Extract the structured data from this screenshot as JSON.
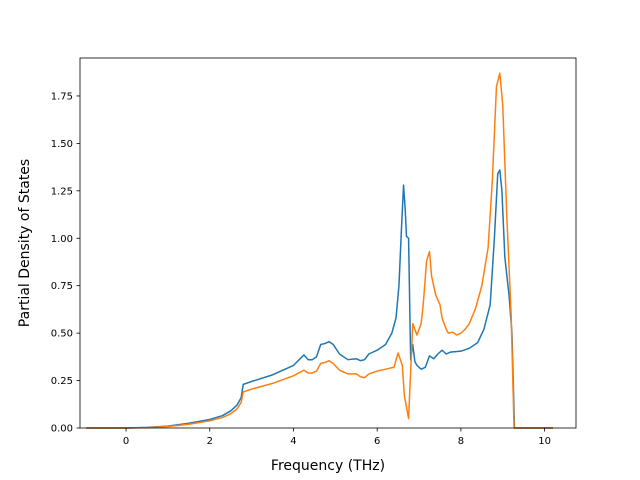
{
  "chart_data": {
    "type": "line",
    "title": "",
    "xlabel": "Frequency (THz)",
    "ylabel": "Partial Density of States",
    "xlim": [
      -1.1,
      10.75
    ],
    "ylim": [
      0,
      1.95
    ],
    "xticks": [
      0,
      2,
      4,
      6,
      8,
      10
    ],
    "yticks": [
      0.0,
      0.25,
      0.5,
      0.75,
      1.0,
      1.25,
      1.5,
      1.75
    ],
    "xtick_labels": [
      "0",
      "2",
      "4",
      "6",
      "8",
      "10"
    ],
    "ytick_labels": [
      "0.00",
      "0.25",
      "0.50",
      "0.75",
      "1.00",
      "1.25",
      "1.50",
      "1.75"
    ],
    "grid": false,
    "legend": "none",
    "series": [
      {
        "color": "#1f77b4",
        "points": [
          [
            -0.95,
            0.0
          ],
          [
            0.0,
            0.0
          ],
          [
            0.5,
            0.003
          ],
          [
            1.0,
            0.01
          ],
          [
            1.5,
            0.025
          ],
          [
            2.0,
            0.045
          ],
          [
            2.3,
            0.065
          ],
          [
            2.5,
            0.09
          ],
          [
            2.65,
            0.12
          ],
          [
            2.75,
            0.16
          ],
          [
            2.8,
            0.23
          ],
          [
            3.0,
            0.245
          ],
          [
            3.5,
            0.28
          ],
          [
            4.0,
            0.33
          ],
          [
            4.25,
            0.385
          ],
          [
            4.35,
            0.36
          ],
          [
            4.45,
            0.36
          ],
          [
            4.55,
            0.375
          ],
          [
            4.65,
            0.44
          ],
          [
            4.75,
            0.445
          ],
          [
            4.85,
            0.455
          ],
          [
            4.95,
            0.44
          ],
          [
            5.1,
            0.39
          ],
          [
            5.3,
            0.36
          ],
          [
            5.5,
            0.365
          ],
          [
            5.6,
            0.355
          ],
          [
            5.7,
            0.36
          ],
          [
            5.8,
            0.39
          ],
          [
            6.0,
            0.41
          ],
          [
            6.2,
            0.44
          ],
          [
            6.35,
            0.5
          ],
          [
            6.45,
            0.58
          ],
          [
            6.52,
            0.75
          ],
          [
            6.58,
            1.05
          ],
          [
            6.63,
            1.28
          ],
          [
            6.67,
            1.15
          ],
          [
            6.7,
            1.01
          ],
          [
            6.75,
            1.0
          ],
          [
            6.8,
            0.36
          ],
          [
            6.85,
            0.44
          ],
          [
            6.9,
            0.35
          ],
          [
            6.95,
            0.33
          ],
          [
            7.05,
            0.31
          ],
          [
            7.15,
            0.32
          ],
          [
            7.25,
            0.38
          ],
          [
            7.35,
            0.365
          ],
          [
            7.45,
            0.39
          ],
          [
            7.55,
            0.41
          ],
          [
            7.65,
            0.39
          ],
          [
            7.75,
            0.4
          ],
          [
            8.0,
            0.405
          ],
          [
            8.2,
            0.42
          ],
          [
            8.4,
            0.45
          ],
          [
            8.55,
            0.52
          ],
          [
            8.7,
            0.65
          ],
          [
            8.8,
            1.0
          ],
          [
            8.88,
            1.34
          ],
          [
            8.93,
            1.36
          ],
          [
            8.98,
            1.25
          ],
          [
            9.05,
            0.9
          ],
          [
            9.15,
            0.7
          ],
          [
            9.22,
            0.5
          ],
          [
            9.28,
            0.0
          ],
          [
            10.2,
            0.0
          ]
        ]
      },
      {
        "color": "#ff7f0e",
        "points": [
          [
            -0.95,
            0.0
          ],
          [
            0.0,
            0.0
          ],
          [
            0.5,
            0.002
          ],
          [
            1.0,
            0.008
          ],
          [
            1.5,
            0.02
          ],
          [
            2.0,
            0.038
          ],
          [
            2.3,
            0.055
          ],
          [
            2.5,
            0.075
          ],
          [
            2.65,
            0.1
          ],
          [
            2.75,
            0.135
          ],
          [
            2.8,
            0.19
          ],
          [
            3.0,
            0.205
          ],
          [
            3.5,
            0.235
          ],
          [
            4.0,
            0.275
          ],
          [
            4.25,
            0.305
          ],
          [
            4.35,
            0.29
          ],
          [
            4.45,
            0.29
          ],
          [
            4.55,
            0.3
          ],
          [
            4.65,
            0.34
          ],
          [
            4.75,
            0.345
          ],
          [
            4.85,
            0.355
          ],
          [
            4.95,
            0.34
          ],
          [
            5.1,
            0.305
          ],
          [
            5.3,
            0.285
          ],
          [
            5.5,
            0.285
          ],
          [
            5.6,
            0.27
          ],
          [
            5.7,
            0.265
          ],
          [
            5.8,
            0.285
          ],
          [
            6.0,
            0.3
          ],
          [
            6.2,
            0.31
          ],
          [
            6.4,
            0.32
          ],
          [
            6.5,
            0.395
          ],
          [
            6.6,
            0.33
          ],
          [
            6.65,
            0.17
          ],
          [
            6.75,
            0.05
          ],
          [
            6.8,
            0.3
          ],
          [
            6.85,
            0.55
          ],
          [
            6.95,
            0.49
          ],
          [
            7.05,
            0.55
          ],
          [
            7.1,
            0.65
          ],
          [
            7.18,
            0.88
          ],
          [
            7.25,
            0.93
          ],
          [
            7.3,
            0.8
          ],
          [
            7.4,
            0.7
          ],
          [
            7.5,
            0.65
          ],
          [
            7.55,
            0.58
          ],
          [
            7.65,
            0.52
          ],
          [
            7.7,
            0.5
          ],
          [
            7.8,
            0.505
          ],
          [
            7.9,
            0.49
          ],
          [
            8.0,
            0.5
          ],
          [
            8.1,
            0.52
          ],
          [
            8.2,
            0.55
          ],
          [
            8.35,
            0.63
          ],
          [
            8.5,
            0.75
          ],
          [
            8.65,
            0.95
          ],
          [
            8.75,
            1.3
          ],
          [
            8.85,
            1.8
          ],
          [
            8.93,
            1.87
          ],
          [
            9.0,
            1.7
          ],
          [
            9.1,
            1.1
          ],
          [
            9.2,
            0.6
          ],
          [
            9.27,
            0.0
          ],
          [
            10.2,
            0.0
          ]
        ]
      }
    ]
  }
}
